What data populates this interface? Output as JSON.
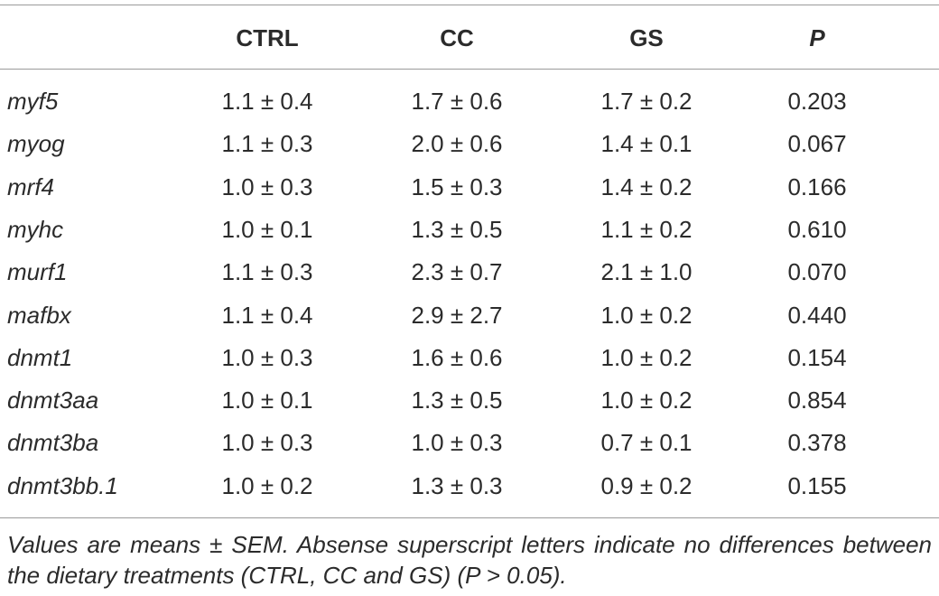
{
  "table": {
    "header": [
      "CTRL",
      "CC",
      "GS",
      "P"
    ],
    "rows": [
      [
        "myf5",
        "1.1 ± 0.4",
        "1.7 ± 0.6",
        "1.7 ± 0.2",
        "0.203"
      ],
      [
        "myog",
        "1.1 ± 0.3",
        "2.0 ± 0.6",
        "1.4 ± 0.1",
        "0.067"
      ],
      [
        "mrf4",
        "1.0 ± 0.3",
        "1.5 ± 0.3",
        "1.4 ± 0.2",
        "0.166"
      ],
      [
        "myhc",
        "1.0 ± 0.1",
        "1.3 ± 0.5",
        "1.1 ± 0.2",
        "0.610"
      ],
      [
        "murf1",
        "1.1 ± 0.3",
        "2.3 ± 0.7",
        "2.1 ± 1.0",
        "0.070"
      ],
      [
        "mafbx",
        "1.1 ± 0.4",
        "2.9 ± 2.7",
        "1.0 ± 0.2",
        "0.440"
      ],
      [
        "dnmt1",
        "1.0 ± 0.3",
        "1.6 ± 0.6",
        "1.0 ± 0.2",
        "0.154"
      ],
      [
        "dnmt3aa",
        "1.0 ± 0.1",
        "1.3 ± 0.5",
        "1.0 ± 0.2",
        "0.854"
      ],
      [
        "dnmt3ba",
        "1.0 ± 0.3",
        "1.0 ± 0.3",
        "0.7 ± 0.1",
        "0.378"
      ],
      [
        "dnmt3bb.1",
        "1.0 ± 0.2",
        "1.3 ± 0.3",
        "0.9 ± 0.2",
        "0.155"
      ]
    ],
    "footnote": "Values are means ± SEM. Absense superscript letters indicate no differences between the dietary treatments (CTRL, CC and GS) (P > 0.05)."
  }
}
